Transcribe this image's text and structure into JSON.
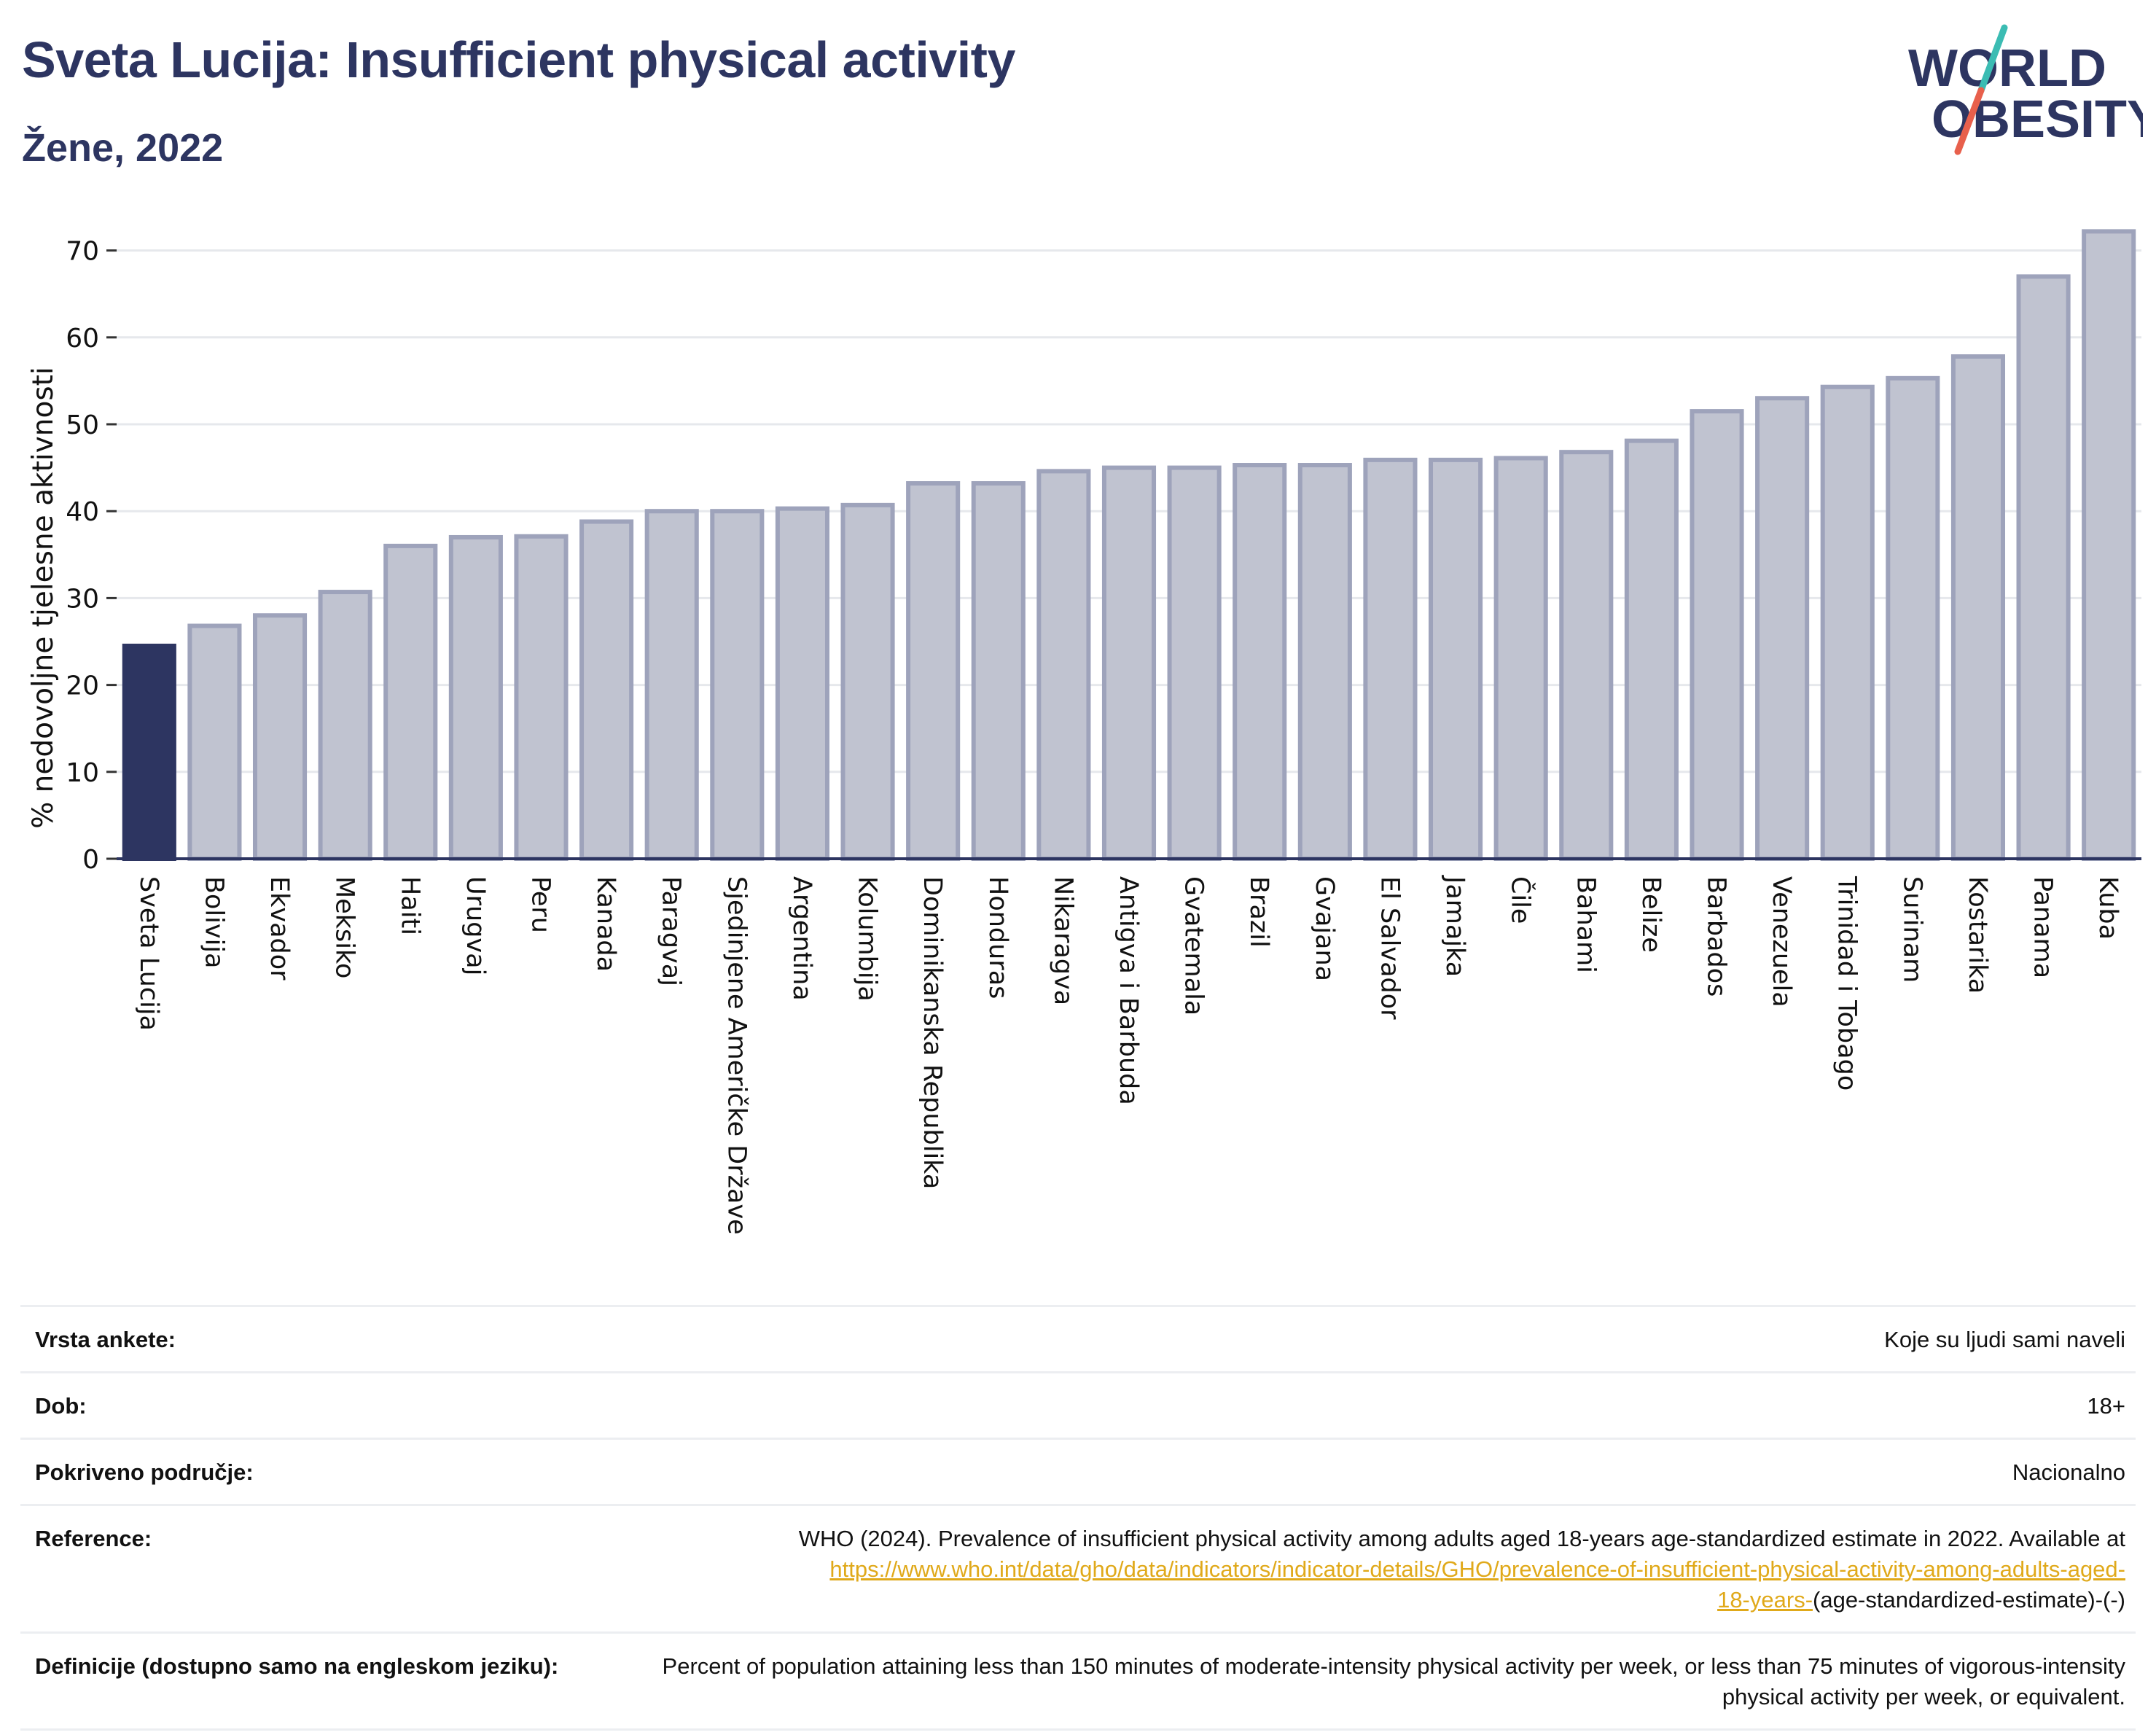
{
  "header": {
    "title": "Sveta Lucija: Insufficient physical activity",
    "subtitle": "Žene, 2022"
  },
  "logo": {
    "line1": "WORLD",
    "line2": "OBESITY",
    "colors": {
      "text": "#2d3561",
      "slash_teal": "#3bbcb3",
      "slash_red": "#e8604c"
    }
  },
  "colors": {
    "highlight_bar": "#2d3561",
    "bar_fill": "#c0c3d0",
    "bar_stroke": "#9ea3bb",
    "grid": "#e6e8ec",
    "axis": "#2d3561",
    "link": "#e0a91a"
  },
  "chart_data": {
    "type": "bar",
    "ylabel": "% nedovoljne tjelesne aktivnosti",
    "ylim": [
      0,
      75
    ],
    "yticks": [
      0,
      10,
      20,
      30,
      40,
      50,
      60,
      70
    ],
    "grid": true,
    "highlight": "Sveta Lucija",
    "categories": [
      "Sveta Lucija",
      "Bolivija",
      "Ekvador",
      "Meksiko",
      "Haiti",
      "Urugvaj",
      "Peru",
      "Kanada",
      "Paragvaj",
      "Sjedinjene Američke Države",
      "Argentina",
      "Kolumbija",
      "Dominikanska Republika",
      "Honduras",
      "Nikaragva",
      "Antigva i Barbuda",
      "Gvatemala",
      "Brazil",
      "Gvajana",
      "El Salvador",
      "Jamajka",
      "Čile",
      "Bahami",
      "Belize",
      "Barbados",
      "Venezuela",
      "Trinidad i Tobago",
      "Surinam",
      "Kostarika",
      "Panama",
      "Kuba"
    ],
    "values": [
      24.5,
      26.8,
      28.0,
      30.7,
      36.0,
      37.0,
      37.1,
      38.8,
      40.0,
      40.0,
      40.3,
      40.7,
      43.2,
      43.2,
      44.6,
      45.0,
      45.0,
      45.3,
      45.3,
      45.9,
      45.9,
      46.1,
      46.8,
      48.1,
      51.5,
      53.0,
      54.3,
      55.3,
      57.8,
      67.0,
      72.2
    ]
  },
  "info": {
    "rows": [
      {
        "label": "Vrsta ankete:",
        "value": "Koje su ljudi sami naveli"
      },
      {
        "label": "Dob:",
        "value": "18+"
      },
      {
        "label": "Pokriveno područje:",
        "value": "Nacionalno"
      }
    ],
    "reference": {
      "label": "Reference:",
      "text": "WHO (2024). Prevalence of insufficient physical activity among adults aged 18-years age-standardized estimate in 2022. Available at",
      "link_part1": "https://www.who.int/data/gho/data/indicators/indicator-details/GHO/prevalence-of-insufficient-physical-activity-among-adults-aged-",
      "link_part2": "18-years-",
      "suffix": "(age-standardized-estimate)-(-)"
    },
    "definition": {
      "label": "Definicije (dostupno samo na engleskom jeziku):",
      "text": "Percent of population attaining less than 150 minutes of moderate-intensity physical activity per week, or less than 75 minutes of vigorous-intensity physical activity per week, or equivalent."
    }
  }
}
